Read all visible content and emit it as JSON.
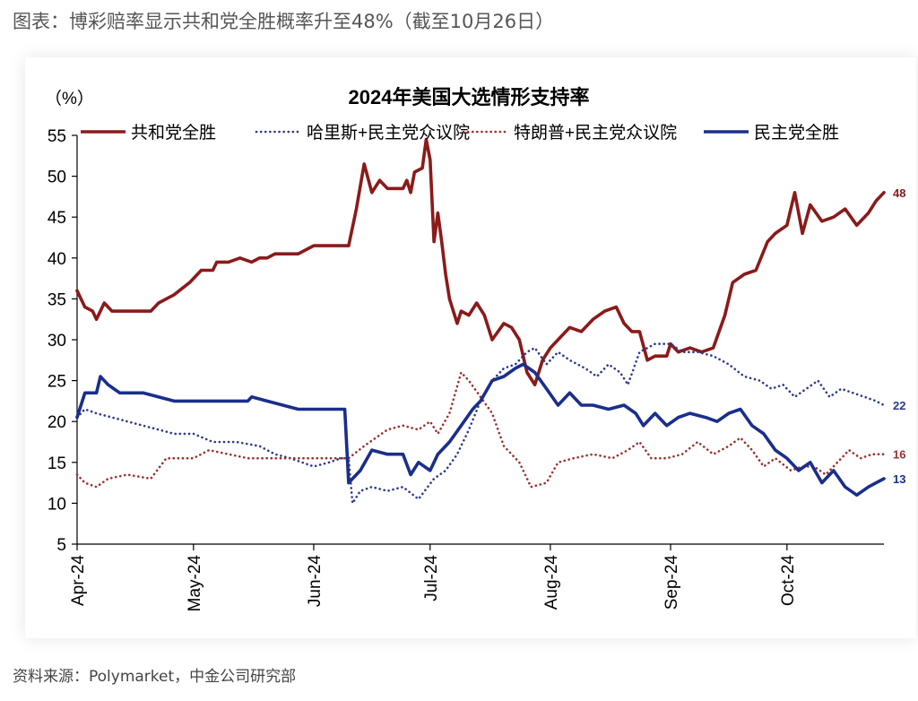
{
  "caption": "图表：博彩赔率显示共和党全胜概率升至48%（截至10月26日）",
  "source": "资料来源：Polymarket，中金公司研究部",
  "chart_data": {
    "type": "line",
    "title": "2024年美国大选情形支持率",
    "ylabel": "（%）",
    "ylim": [
      5,
      55
    ],
    "y_ticks": [
      "5",
      "10",
      "15",
      "20",
      "25",
      "30",
      "35",
      "40",
      "45",
      "50",
      "55"
    ],
    "x_tick_labels": [
      "Apr-24",
      "May-24",
      "Jun-24",
      "Jul-24",
      "Aug-24",
      "Sep-24",
      "Oct-24"
    ],
    "x_range": [
      "2024-04-01",
      "2024-10-26"
    ],
    "grid": false,
    "legend_position": "top",
    "series": [
      {
        "name": "共和党全胜",
        "color": "#8B1A1A",
        "style": "solid",
        "end_label": "48",
        "points": [
          [
            "2024-04-01",
            36
          ],
          [
            "2024-04-03",
            34
          ],
          [
            "2024-04-05",
            33.5
          ],
          [
            "2024-04-06",
            32.5
          ],
          [
            "2024-04-08",
            34.5
          ],
          [
            "2024-04-10",
            33.5
          ],
          [
            "2024-04-14",
            33.5
          ],
          [
            "2024-04-20",
            33.5
          ],
          [
            "2024-04-22",
            34.5
          ],
          [
            "2024-04-26",
            35.5
          ],
          [
            "2024-04-30",
            37
          ],
          [
            "2024-05-03",
            38.5
          ],
          [
            "2024-05-06",
            38.5
          ],
          [
            "2024-05-07",
            39.5
          ],
          [
            "2024-05-10",
            39.5
          ],
          [
            "2024-05-13",
            40
          ],
          [
            "2024-05-16",
            39.5
          ],
          [
            "2024-05-18",
            40
          ],
          [
            "2024-05-20",
            40
          ],
          [
            "2024-05-22",
            40.5
          ],
          [
            "2024-05-25",
            40.5
          ],
          [
            "2024-05-28",
            40.5
          ],
          [
            "2024-06-01",
            41.5
          ],
          [
            "2024-06-04",
            41.5
          ],
          [
            "2024-06-10",
            41.5
          ],
          [
            "2024-06-12",
            46
          ],
          [
            "2024-06-14",
            51.5
          ],
          [
            "2024-06-16",
            48
          ],
          [
            "2024-06-18",
            49.5
          ],
          [
            "2024-06-20",
            48.5
          ],
          [
            "2024-06-22",
            48.5
          ],
          [
            "2024-06-24",
            48.5
          ],
          [
            "2024-06-25",
            49.5
          ],
          [
            "2024-06-26",
            48
          ],
          [
            "2024-06-27",
            50.5
          ],
          [
            "2024-06-29",
            51
          ],
          [
            "2024-06-30",
            54.5
          ],
          [
            "2024-07-01",
            52
          ],
          [
            "2024-07-02",
            42
          ],
          [
            "2024-07-03",
            45.5
          ],
          [
            "2024-07-04",
            42
          ],
          [
            "2024-07-05",
            38
          ],
          [
            "2024-07-06",
            35
          ],
          [
            "2024-07-08",
            32
          ],
          [
            "2024-07-09",
            33.5
          ],
          [
            "2024-07-11",
            33
          ],
          [
            "2024-07-13",
            34.5
          ],
          [
            "2024-07-15",
            33
          ],
          [
            "2024-07-17",
            30
          ],
          [
            "2024-07-20",
            32
          ],
          [
            "2024-07-22",
            31.5
          ],
          [
            "2024-07-24",
            30
          ],
          [
            "2024-07-26",
            26
          ],
          [
            "2024-07-28",
            24.5
          ],
          [
            "2024-07-30",
            27.5
          ],
          [
            "2024-08-01",
            29
          ],
          [
            "2024-08-03",
            30
          ],
          [
            "2024-08-06",
            31.5
          ],
          [
            "2024-08-09",
            31
          ],
          [
            "2024-08-12",
            32.5
          ],
          [
            "2024-08-15",
            33.5
          ],
          [
            "2024-08-18",
            34
          ],
          [
            "2024-08-20",
            32
          ],
          [
            "2024-08-22",
            31
          ],
          [
            "2024-08-24",
            31
          ],
          [
            "2024-08-26",
            27.5
          ],
          [
            "2024-08-28",
            28
          ],
          [
            "2024-08-31",
            28
          ],
          [
            "2024-09-01",
            29.5
          ],
          [
            "2024-09-03",
            28.5
          ],
          [
            "2024-09-06",
            29
          ],
          [
            "2024-09-09",
            28.5
          ],
          [
            "2024-09-12",
            29
          ],
          [
            "2024-09-15",
            33
          ],
          [
            "2024-09-17",
            37
          ],
          [
            "2024-09-20",
            38
          ],
          [
            "2024-09-23",
            38.5
          ],
          [
            "2024-09-26",
            42
          ],
          [
            "2024-09-28",
            43
          ],
          [
            "2024-10-01",
            44
          ],
          [
            "2024-10-03",
            48
          ],
          [
            "2024-10-05",
            43
          ],
          [
            "2024-10-07",
            46.5
          ],
          [
            "2024-10-10",
            44.5
          ],
          [
            "2024-10-13",
            45
          ],
          [
            "2024-10-16",
            46
          ],
          [
            "2024-10-19",
            44
          ],
          [
            "2024-10-22",
            45.5
          ],
          [
            "2024-10-24",
            47
          ],
          [
            "2024-10-26",
            48
          ]
        ]
      },
      {
        "name": "哈里斯+民主党众议院",
        "color": "#2E3A8C",
        "style": "dotted",
        "end_label": "22",
        "points": [
          [
            "2024-04-01",
            20.5
          ],
          [
            "2024-04-03",
            21.5
          ],
          [
            "2024-04-06",
            21
          ],
          [
            "2024-04-10",
            20.5
          ],
          [
            "2024-04-18",
            19.5
          ],
          [
            "2024-04-22",
            19
          ],
          [
            "2024-04-26",
            18.5
          ],
          [
            "2024-05-01",
            18.5
          ],
          [
            "2024-05-06",
            17.5
          ],
          [
            "2024-05-12",
            17.5
          ],
          [
            "2024-05-18",
            17
          ],
          [
            "2024-05-22",
            16
          ],
          [
            "2024-05-26",
            15.5
          ],
          [
            "2024-06-01",
            14.5
          ],
          [
            "2024-06-05",
            15
          ],
          [
            "2024-06-08",
            15.5
          ],
          [
            "2024-06-10",
            15.5
          ],
          [
            "2024-06-11",
            10
          ],
          [
            "2024-06-13",
            11.5
          ],
          [
            "2024-06-16",
            12
          ],
          [
            "2024-06-20",
            11.5
          ],
          [
            "2024-06-24",
            12
          ],
          [
            "2024-06-28",
            10.5
          ],
          [
            "2024-07-02",
            13
          ],
          [
            "2024-07-05",
            14
          ],
          [
            "2024-07-08",
            16
          ],
          [
            "2024-07-11",
            19
          ],
          [
            "2024-07-14",
            22.5
          ],
          [
            "2024-07-17",
            25
          ],
          [
            "2024-07-20",
            26.5
          ],
          [
            "2024-07-23",
            27
          ],
          [
            "2024-07-26",
            28.5
          ],
          [
            "2024-07-28",
            29
          ],
          [
            "2024-07-31",
            27
          ],
          [
            "2024-08-03",
            28.5
          ],
          [
            "2024-08-06",
            27.5
          ],
          [
            "2024-08-10",
            26.5
          ],
          [
            "2024-08-13",
            25.5
          ],
          [
            "2024-08-16",
            27
          ],
          [
            "2024-08-19",
            26
          ],
          [
            "2024-08-21",
            24.5
          ],
          [
            "2024-08-24",
            28.5
          ],
          [
            "2024-08-28",
            29.5
          ],
          [
            "2024-09-01",
            29.5
          ],
          [
            "2024-09-04",
            28.5
          ],
          [
            "2024-09-08",
            28.5
          ],
          [
            "2024-09-12",
            28
          ],
          [
            "2024-09-16",
            27
          ],
          [
            "2024-09-20",
            25.5
          ],
          [
            "2024-09-24",
            25
          ],
          [
            "2024-09-27",
            24
          ],
          [
            "2024-09-30",
            24.5
          ],
          [
            "2024-10-03",
            23
          ],
          [
            "2024-10-06",
            24
          ],
          [
            "2024-10-09",
            25
          ],
          [
            "2024-10-12",
            23
          ],
          [
            "2024-10-15",
            24
          ],
          [
            "2024-10-18",
            23.5
          ],
          [
            "2024-10-21",
            23
          ],
          [
            "2024-10-24",
            22.5
          ],
          [
            "2024-10-26",
            22
          ]
        ]
      },
      {
        "name": "特朗普+民主党众议院",
        "color": "#9C2F2F",
        "style": "dotted",
        "end_label": "16",
        "points": [
          [
            "2024-04-01",
            13.5
          ],
          [
            "2024-04-03",
            12.5
          ],
          [
            "2024-04-06",
            12
          ],
          [
            "2024-04-09",
            13
          ],
          [
            "2024-04-14",
            13.5
          ],
          [
            "2024-04-20",
            13
          ],
          [
            "2024-04-24",
            15.5
          ],
          [
            "2024-05-01",
            15.5
          ],
          [
            "2024-05-05",
            16.5
          ],
          [
            "2024-05-10",
            16
          ],
          [
            "2024-05-15",
            15.5
          ],
          [
            "2024-05-20",
            15.5
          ],
          [
            "2024-05-30",
            15.5
          ],
          [
            "2024-06-05",
            15.5
          ],
          [
            "2024-06-10",
            15.5
          ],
          [
            "2024-06-14",
            17
          ],
          [
            "2024-06-20",
            19
          ],
          [
            "2024-06-24",
            19.5
          ],
          [
            "2024-06-28",
            19
          ],
          [
            "2024-07-01",
            20
          ],
          [
            "2024-07-03",
            18.5
          ],
          [
            "2024-07-06",
            21
          ],
          [
            "2024-07-09",
            26
          ],
          [
            "2024-07-11",
            25
          ],
          [
            "2024-07-14",
            23
          ],
          [
            "2024-07-17",
            21
          ],
          [
            "2024-07-20",
            17
          ],
          [
            "2024-07-24",
            15
          ],
          [
            "2024-07-27",
            12
          ],
          [
            "2024-07-31",
            12.5
          ],
          [
            "2024-08-03",
            15
          ],
          [
            "2024-08-07",
            15.5
          ],
          [
            "2024-08-12",
            16
          ],
          [
            "2024-08-17",
            15.5
          ],
          [
            "2024-08-21",
            16.5
          ],
          [
            "2024-08-24",
            17.5
          ],
          [
            "2024-08-27",
            15.5
          ],
          [
            "2024-08-31",
            15.5
          ],
          [
            "2024-09-04",
            16
          ],
          [
            "2024-09-08",
            17.5
          ],
          [
            "2024-09-12",
            16
          ],
          [
            "2024-09-16",
            17
          ],
          [
            "2024-09-19",
            18
          ],
          [
            "2024-09-22",
            16.5
          ],
          [
            "2024-09-25",
            14.5
          ],
          [
            "2024-09-28",
            15.5
          ],
          [
            "2024-10-02",
            14
          ],
          [
            "2024-10-05",
            14.5
          ],
          [
            "2024-10-08",
            14.5
          ],
          [
            "2024-10-11",
            13.5
          ],
          [
            "2024-10-14",
            15
          ],
          [
            "2024-10-17",
            16.5
          ],
          [
            "2024-10-20",
            15.5
          ],
          [
            "2024-10-23",
            16
          ],
          [
            "2024-10-26",
            16
          ]
        ]
      },
      {
        "name": "民主党全胜",
        "color": "#1A2E8C",
        "style": "solid",
        "end_label": "13",
        "points": [
          [
            "2024-04-01",
            20.5
          ],
          [
            "2024-04-03",
            23.5
          ],
          [
            "2024-04-06",
            23.5
          ],
          [
            "2024-04-07",
            25.5
          ],
          [
            "2024-04-09",
            24.5
          ],
          [
            "2024-04-12",
            23.5
          ],
          [
            "2024-04-18",
            23.5
          ],
          [
            "2024-04-26",
            22.5
          ],
          [
            "2024-05-10",
            22.5
          ],
          [
            "2024-05-15",
            22.5
          ],
          [
            "2024-05-16",
            23
          ],
          [
            "2024-05-20",
            22.5
          ],
          [
            "2024-05-28",
            21.5
          ],
          [
            "2024-06-05",
            21.5
          ],
          [
            "2024-06-09",
            21.5
          ],
          [
            "2024-06-10",
            12.5
          ],
          [
            "2024-06-13",
            14
          ],
          [
            "2024-06-16",
            16.5
          ],
          [
            "2024-06-20",
            16
          ],
          [
            "2024-06-24",
            16
          ],
          [
            "2024-06-26",
            13.5
          ],
          [
            "2024-06-28",
            15
          ],
          [
            "2024-07-01",
            14
          ],
          [
            "2024-07-03",
            16
          ],
          [
            "2024-07-06",
            17.5
          ],
          [
            "2024-07-09",
            19.5
          ],
          [
            "2024-07-12",
            21.5
          ],
          [
            "2024-07-14",
            22.5
          ],
          [
            "2024-07-17",
            25
          ],
          [
            "2024-07-20",
            25.5
          ],
          [
            "2024-07-23",
            26.5
          ],
          [
            "2024-07-25",
            27
          ],
          [
            "2024-07-28",
            26
          ],
          [
            "2024-07-31",
            24
          ],
          [
            "2024-08-03",
            22
          ],
          [
            "2024-08-06",
            23.5
          ],
          [
            "2024-08-09",
            22
          ],
          [
            "2024-08-12",
            22
          ],
          [
            "2024-08-16",
            21.5
          ],
          [
            "2024-08-20",
            22
          ],
          [
            "2024-08-23",
            21
          ],
          [
            "2024-08-25",
            19.5
          ],
          [
            "2024-08-28",
            21
          ],
          [
            "2024-08-31",
            19.5
          ],
          [
            "2024-09-03",
            20.5
          ],
          [
            "2024-09-06",
            21
          ],
          [
            "2024-09-10",
            20.5
          ],
          [
            "2024-09-13",
            20
          ],
          [
            "2024-09-16",
            21
          ],
          [
            "2024-09-19",
            21.5
          ],
          [
            "2024-09-22",
            19.5
          ],
          [
            "2024-09-25",
            18.5
          ],
          [
            "2024-09-28",
            16.5
          ],
          [
            "2024-10-01",
            15.5
          ],
          [
            "2024-10-04",
            14
          ],
          [
            "2024-10-07",
            15
          ],
          [
            "2024-10-10",
            12.5
          ],
          [
            "2024-10-13",
            14
          ],
          [
            "2024-10-16",
            12
          ],
          [
            "2024-10-19",
            11
          ],
          [
            "2024-10-22",
            12
          ],
          [
            "2024-10-24",
            12.5
          ],
          [
            "2024-10-26",
            13
          ]
        ]
      }
    ]
  }
}
